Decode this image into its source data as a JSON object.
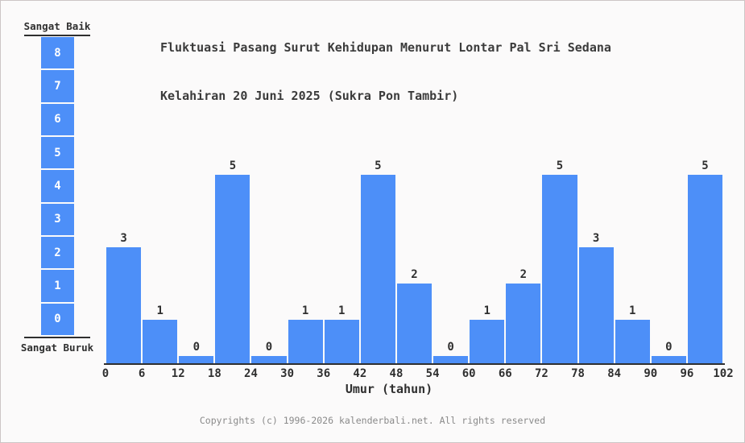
{
  "title": {
    "line1": "Fluktuasi Pasang Surut Kehidupan Menurut Lontar Pal Sri Sedana",
    "line2": "Kelahiran 20 Juni 2025 (Sukra Pon Tambir)"
  },
  "legend": {
    "top_label": "Sangat Baik",
    "bottom_label": "Sangat Buruk",
    "scale": [
      8,
      7,
      6,
      5,
      4,
      3,
      2,
      1,
      0
    ]
  },
  "chart_data": {
    "type": "bar",
    "title": "Fluktuasi Pasang Surut Kehidupan Menurut Lontar Pal Sri Sedana Kelahiran 20 Juni 2025 (Sukra Pon Tambir)",
    "categories": [
      "0-6",
      "6-12",
      "12-18",
      "18-24",
      "24-30",
      "30-36",
      "36-42",
      "42-48",
      "48-54",
      "54-60",
      "60-66",
      "66-72",
      "72-78",
      "78-84",
      "84-90",
      "90-96",
      "96-102"
    ],
    "values": [
      3,
      1,
      0,
      5,
      0,
      1,
      1,
      5,
      2,
      0,
      1,
      2,
      5,
      3,
      1,
      0,
      5
    ],
    "x_ticks": [
      0,
      6,
      12,
      18,
      24,
      30,
      36,
      42,
      48,
      54,
      60,
      66,
      72,
      78,
      84,
      90,
      96,
      102
    ],
    "bin_width": 6,
    "xlabel": "Umur (tahun)",
    "ylabel": "",
    "ylim": [
      0,
      8
    ],
    "y_scale_top_label": "Sangat Baik",
    "y_scale_bottom_label": "Sangat Buruk",
    "legend_position": "left",
    "grid": false,
    "bar_color": "#4d8ff8"
  },
  "footer": {
    "copyright": "Copyrights (c) 1996-2026 kalenderbali.net. All rights reserved"
  },
  "colors": {
    "bar": "#4d8ff8",
    "axis": "#2f2f2f",
    "title_text": "#3b3b3b",
    "muted_text": "#8a8a8a",
    "background": "#fbfafa",
    "border": "#ccc5c5",
    "legend_number": "#ffffff"
  }
}
